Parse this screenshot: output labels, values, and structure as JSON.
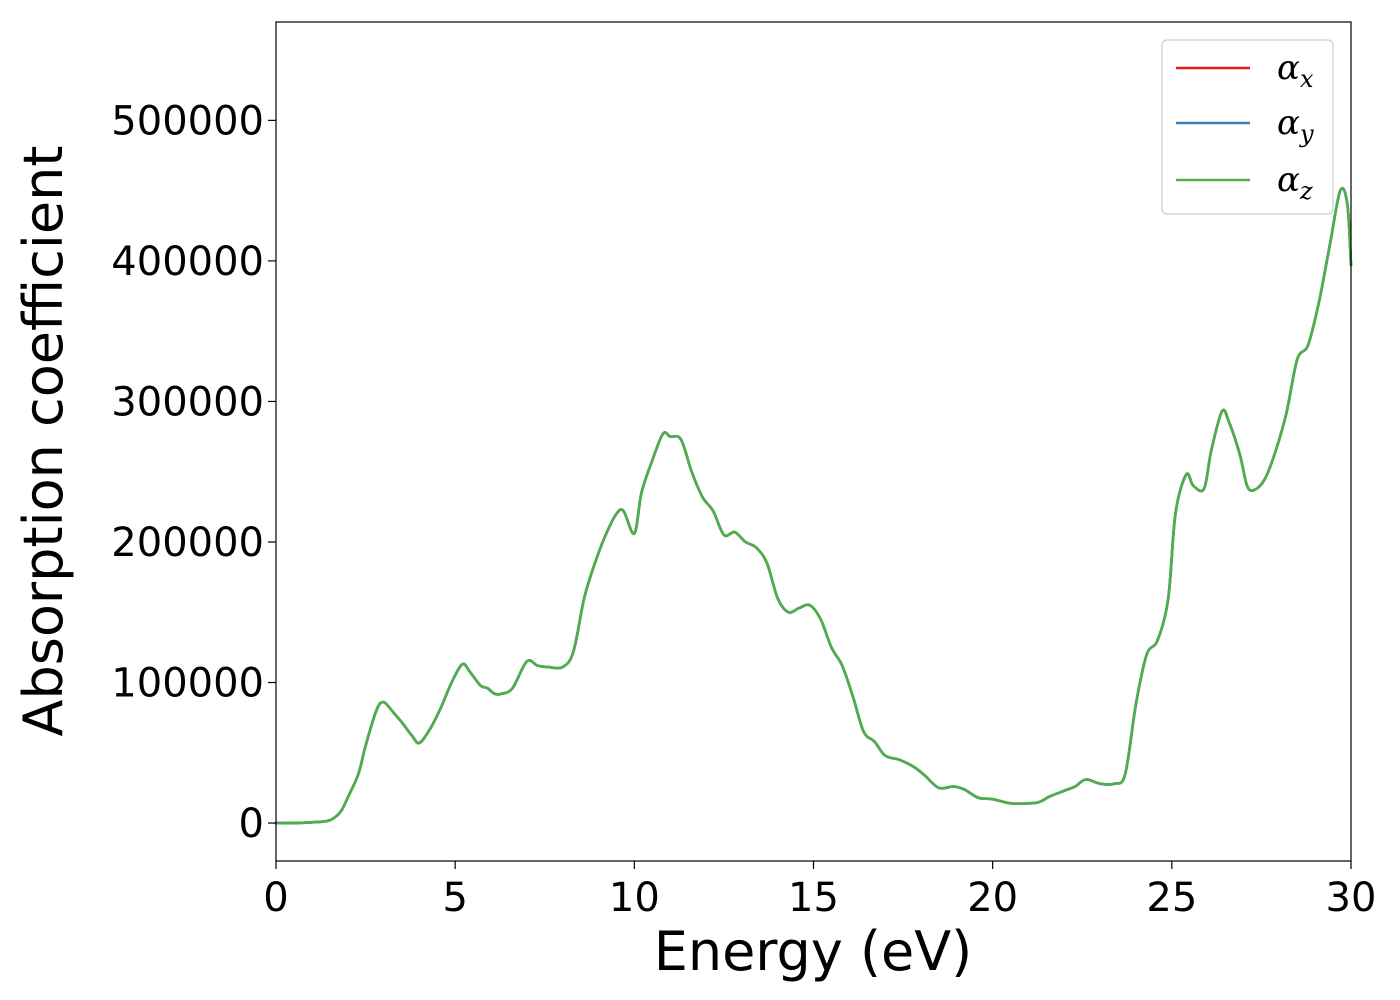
{
  "chart_data": {
    "type": "line",
    "xlabel": "Energy (eV)",
    "ylabel": "Absorption coefficient",
    "xlim": [
      0,
      30
    ],
    "ylim": [
      -27000,
      570000
    ],
    "xticks": [
      0,
      5,
      10,
      15,
      20,
      25,
      30
    ],
    "xtick_labels": [
      "0",
      "5",
      "10",
      "15",
      "20",
      "25",
      "30"
    ],
    "yticks": [
      0,
      100000,
      200000,
      300000,
      400000,
      500000
    ],
    "ytick_labels": [
      "0",
      "100000",
      "200000",
      "300000",
      "400000",
      "500000"
    ],
    "grid": false,
    "legend_position": "top-right",
    "series": [
      {
        "name": "α",
        "subscript": "x",
        "color": "#e41a1c",
        "ref": "shared"
      },
      {
        "name": "α",
        "subscript": "y",
        "color": "#377eb8",
        "ref": "shared"
      },
      {
        "name": "α",
        "subscript": "z",
        "color": "#4daf4a",
        "ref": "shared"
      }
    ],
    "x": [
      0,
      0.5,
      1.0,
      1.5,
      1.8,
      2.0,
      2.3,
      2.5,
      2.8,
      3.0,
      3.3,
      3.5,
      3.8,
      4.0,
      4.3,
      4.6,
      4.9,
      5.2,
      5.4,
      5.7,
      5.9,
      6.1,
      6.3,
      6.6,
      7.0,
      7.3,
      7.6,
      8.0,
      8.3,
      8.6,
      8.9,
      9.2,
      9.5,
      9.7,
      10.0,
      10.2,
      10.5,
      10.8,
      11.0,
      11.3,
      11.6,
      11.9,
      12.2,
      12.5,
      12.8,
      13.1,
      13.4,
      13.7,
      14.0,
      14.3,
      14.6,
      14.9,
      15.2,
      15.5,
      15.8,
      16.1,
      16.4,
      16.7,
      17.0,
      17.4,
      17.8,
      18.1,
      18.5,
      18.9,
      19.2,
      19.6,
      20.0,
      20.5,
      21.0,
      21.3,
      21.6,
      22.0,
      22.3,
      22.6,
      23.0,
      23.4,
      23.7,
      24.0,
      24.3,
      24.6,
      24.9,
      25.1,
      25.4,
      25.6,
      25.9,
      26.1,
      26.4,
      26.6,
      26.9,
      27.1,
      27.3,
      27.6,
      27.9,
      28.2,
      28.5,
      28.8,
      29.1,
      29.4,
      29.7,
      29.9,
      30.0
    ],
    "y": [
      0,
      0,
      500,
      2000,
      8000,
      18000,
      35000,
      55000,
      80000,
      86000,
      78000,
      72000,
      62000,
      57000,
      67000,
      82000,
      100000,
      113000,
      108000,
      98000,
      96000,
      92000,
      92000,
      96000,
      115000,
      112000,
      111000,
      111000,
      122000,
      160000,
      185000,
      205000,
      220000,
      222000,
      206000,
      235000,
      258000,
      277000,
      275000,
      273000,
      250000,
      232000,
      222000,
      205000,
      207000,
      200000,
      196000,
      185000,
      160000,
      150000,
      153000,
      155000,
      145000,
      125000,
      112000,
      90000,
      65000,
      58000,
      48000,
      45000,
      40000,
      34000,
      25000,
      26000,
      24000,
      18000,
      17000,
      14000,
      14000,
      15000,
      19000,
      23000,
      26000,
      31000,
      28000,
      28000,
      35000,
      85000,
      120000,
      130000,
      160000,
      220000,
      248000,
      240000,
      238000,
      265000,
      293000,
      285000,
      262000,
      240000,
      237000,
      245000,
      265000,
      292000,
      330000,
      340000,
      370000,
      410000,
      450000,
      440000,
      397000
    ]
  }
}
